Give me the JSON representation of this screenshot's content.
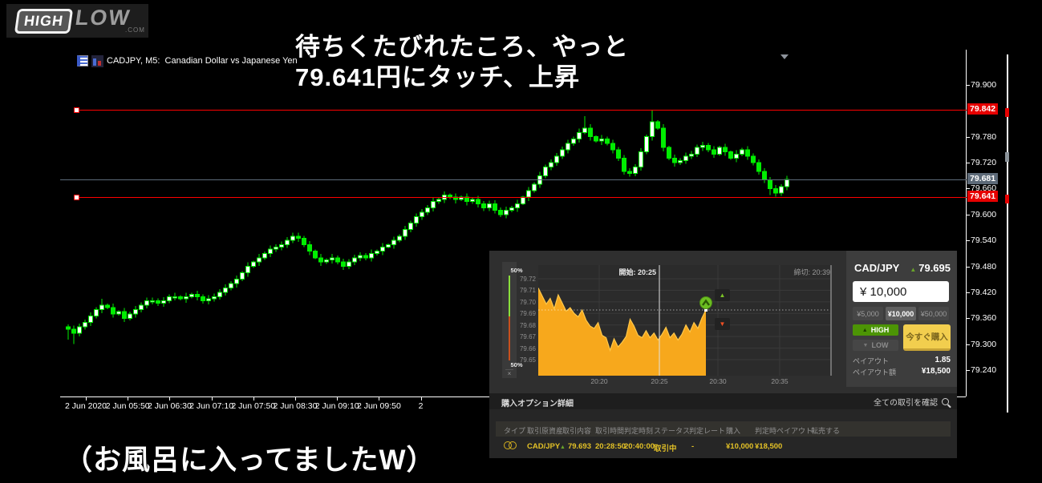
{
  "logo": {
    "high": "HIGH",
    "low": "LOW",
    "com": ".COM"
  },
  "chart": {
    "header": "CADJPY, M5:  Canadian Dollar vs Japanese Yen",
    "title_line1": "待ちくたびれたころ、やっと",
    "title_line2": "79.641円にタッチ、上昇",
    "caption": "（お風呂に入ってましたW）",
    "price_tags": [
      {
        "label": "79.842",
        "price": 79.842,
        "color": "#e60000"
      },
      {
        "label": "79.681",
        "price": 79.681,
        "color": "#5d6a78"
      },
      {
        "label": "79.641",
        "price": 79.641,
        "color": "#e60000"
      }
    ],
    "hlines": [
      {
        "price": 79.842,
        "color": "#ff0000",
        "marker": true
      },
      {
        "price": 79.681,
        "color": "#5c6b7a",
        "marker": false
      },
      {
        "price": 79.641,
        "color": "#ff0000",
        "marker": true
      }
    ]
  },
  "chart_data": [
    {
      "type": "candlestick",
      "title": "CADJPY, M5: Canadian Dollar vs Japanese Yen",
      "timeframe": "M5",
      "y_tick_labels": [
        "79.900",
        "79.780",
        "79.720",
        "79.660",
        "79.600",
        "79.540",
        "79.480",
        "79.420",
        "79.360",
        "79.300",
        "79.240"
      ],
      "x_tick_labels": [
        "2 Jun 2020",
        "2 Jun 05:50",
        "2 Jun 06:30",
        "2 Jun 07:10",
        "2 Jun 07:50",
        "2 Jun 08:30",
        "2 Jun 09:10",
        "2 Jun 09:50",
        "2"
      ],
      "levels": {
        "resistance": 79.842,
        "current": 79.681,
        "support": 79.641
      },
      "first_open": 79.34,
      "closes": [
        79.335,
        79.325,
        79.34,
        79.35,
        79.365,
        79.38,
        79.39,
        79.385,
        79.37,
        79.375,
        79.36,
        79.37,
        79.38,
        79.39,
        79.4,
        79.4,
        79.395,
        79.4,
        79.41,
        79.41,
        79.405,
        79.41,
        79.415,
        79.41,
        79.4,
        79.405,
        79.41,
        79.42,
        79.43,
        79.44,
        79.45,
        79.465,
        79.48,
        79.49,
        79.5,
        79.51,
        79.52,
        79.525,
        79.53,
        79.54,
        79.55,
        79.545,
        79.53,
        79.515,
        79.5,
        79.49,
        79.495,
        79.5,
        79.49,
        79.48,
        79.49,
        79.5,
        79.505,
        79.5,
        79.51,
        79.515,
        79.525,
        79.53,
        79.54,
        79.55,
        79.565,
        79.58,
        79.595,
        79.605,
        79.615,
        79.63,
        79.635,
        79.645,
        79.64,
        79.635,
        79.64,
        79.63,
        79.635,
        79.625,
        79.615,
        79.625,
        79.61,
        79.6,
        79.61,
        79.615,
        79.625,
        79.64,
        79.655,
        79.67,
        79.69,
        79.71,
        79.72,
        79.735,
        79.75,
        79.765,
        79.775,
        79.79,
        79.8,
        79.78,
        79.77,
        79.775,
        79.765,
        79.75,
        79.73,
        79.7,
        79.695,
        79.71,
        79.745,
        79.78,
        79.815,
        79.8,
        79.755,
        79.73,
        79.72,
        79.725,
        79.735,
        79.74,
        79.755,
        79.76,
        79.75,
        79.74,
        79.755,
        79.745,
        79.73,
        79.74,
        79.75,
        79.735,
        79.72,
        79.7,
        79.68,
        79.66,
        79.65,
        79.665,
        79.681
      ],
      "wick_overrides": {
        "0": {
          "low": 79.31
        },
        "1": {
          "low": 79.3
        },
        "6": {
          "high": 79.405
        },
        "40": {
          "high": 79.558
        },
        "92": {
          "high": 79.828
        },
        "104": {
          "high": 79.842
        },
        "125": {
          "low": 79.645
        },
        "126": {
          "low": 79.641
        },
        "127": {
          "low": 79.643
        }
      }
    },
    {
      "type": "area",
      "title": "HighLow in-trade chart CAD/JPY",
      "y_tick_labels": [
        "79.72",
        "79.71",
        "79.70",
        "79.69",
        "79.68",
        "79.67",
        "79.66",
        "79.65"
      ],
      "x_tick_labels": [
        "20:20",
        "20:25",
        "20:30",
        "20:35"
      ],
      "entry_price": 79.693,
      "start_time": "20:25",
      "deadline_time": "20:39",
      "samples": [
        79.712,
        79.705,
        79.698,
        79.703,
        79.694,
        79.706,
        79.699,
        79.692,
        79.695,
        79.69,
        79.687,
        79.693,
        79.684,
        79.679,
        79.677,
        79.682,
        79.671,
        79.669,
        79.658,
        79.668,
        79.661,
        79.665,
        79.67,
        79.685,
        79.679,
        79.671,
        79.669,
        79.675,
        79.669,
        79.673,
        79.667,
        79.672,
        79.678,
        79.669,
        79.673,
        79.667,
        79.672,
        79.68,
        79.674,
        79.682,
        79.677,
        79.686,
        79.693
      ]
    }
  ],
  "widget": {
    "sentiment": {
      "top_pct": "50%",
      "bottom_pct": "50%",
      "close": "×"
    },
    "start_label": "開始: 20:25",
    "deadline_label": "締切: 20:39",
    "panel": {
      "pair": "CAD/JPY",
      "price": "79.695",
      "amount_value": "¥ 10,000",
      "amounts": [
        "¥5,000",
        "¥10,000",
        "¥50,000"
      ],
      "high_label": "HIGH",
      "low_label": "LOW",
      "buy_label": "今すぐ購入",
      "payout_label": "ペイアウト",
      "payout_value": "1.85",
      "payout_amount_label": "ペイアウト額",
      "payout_amount_value": "¥18,500"
    },
    "details_title": "購入オプション詳細",
    "view_all": "全ての取引を確認",
    "table": {
      "headers": [
        "タイプ",
        "取引原資産",
        "取引内容",
        "取引時間",
        "判定時刻",
        "ステータス",
        "判定レート",
        "購入",
        "判定時ペイアウト",
        "転売する"
      ],
      "row": {
        "asset": "CAD/JPY",
        "content": "79.693",
        "trade_time": "20:28:50",
        "decision_time": "20:40:00",
        "status": "取引中",
        "decision_rate": "-",
        "purchase": "¥10,000",
        "payout": "¥18,500"
      }
    }
  },
  "colors": {
    "candle": "#00ee00",
    "area": "#f7a81c",
    "tag_red": "#e60000",
    "current_line": "#5c6b7a",
    "high_green": "#4c9405",
    "buy_yellow": "#f2ce4e",
    "gold_text": "#e3c126"
  }
}
